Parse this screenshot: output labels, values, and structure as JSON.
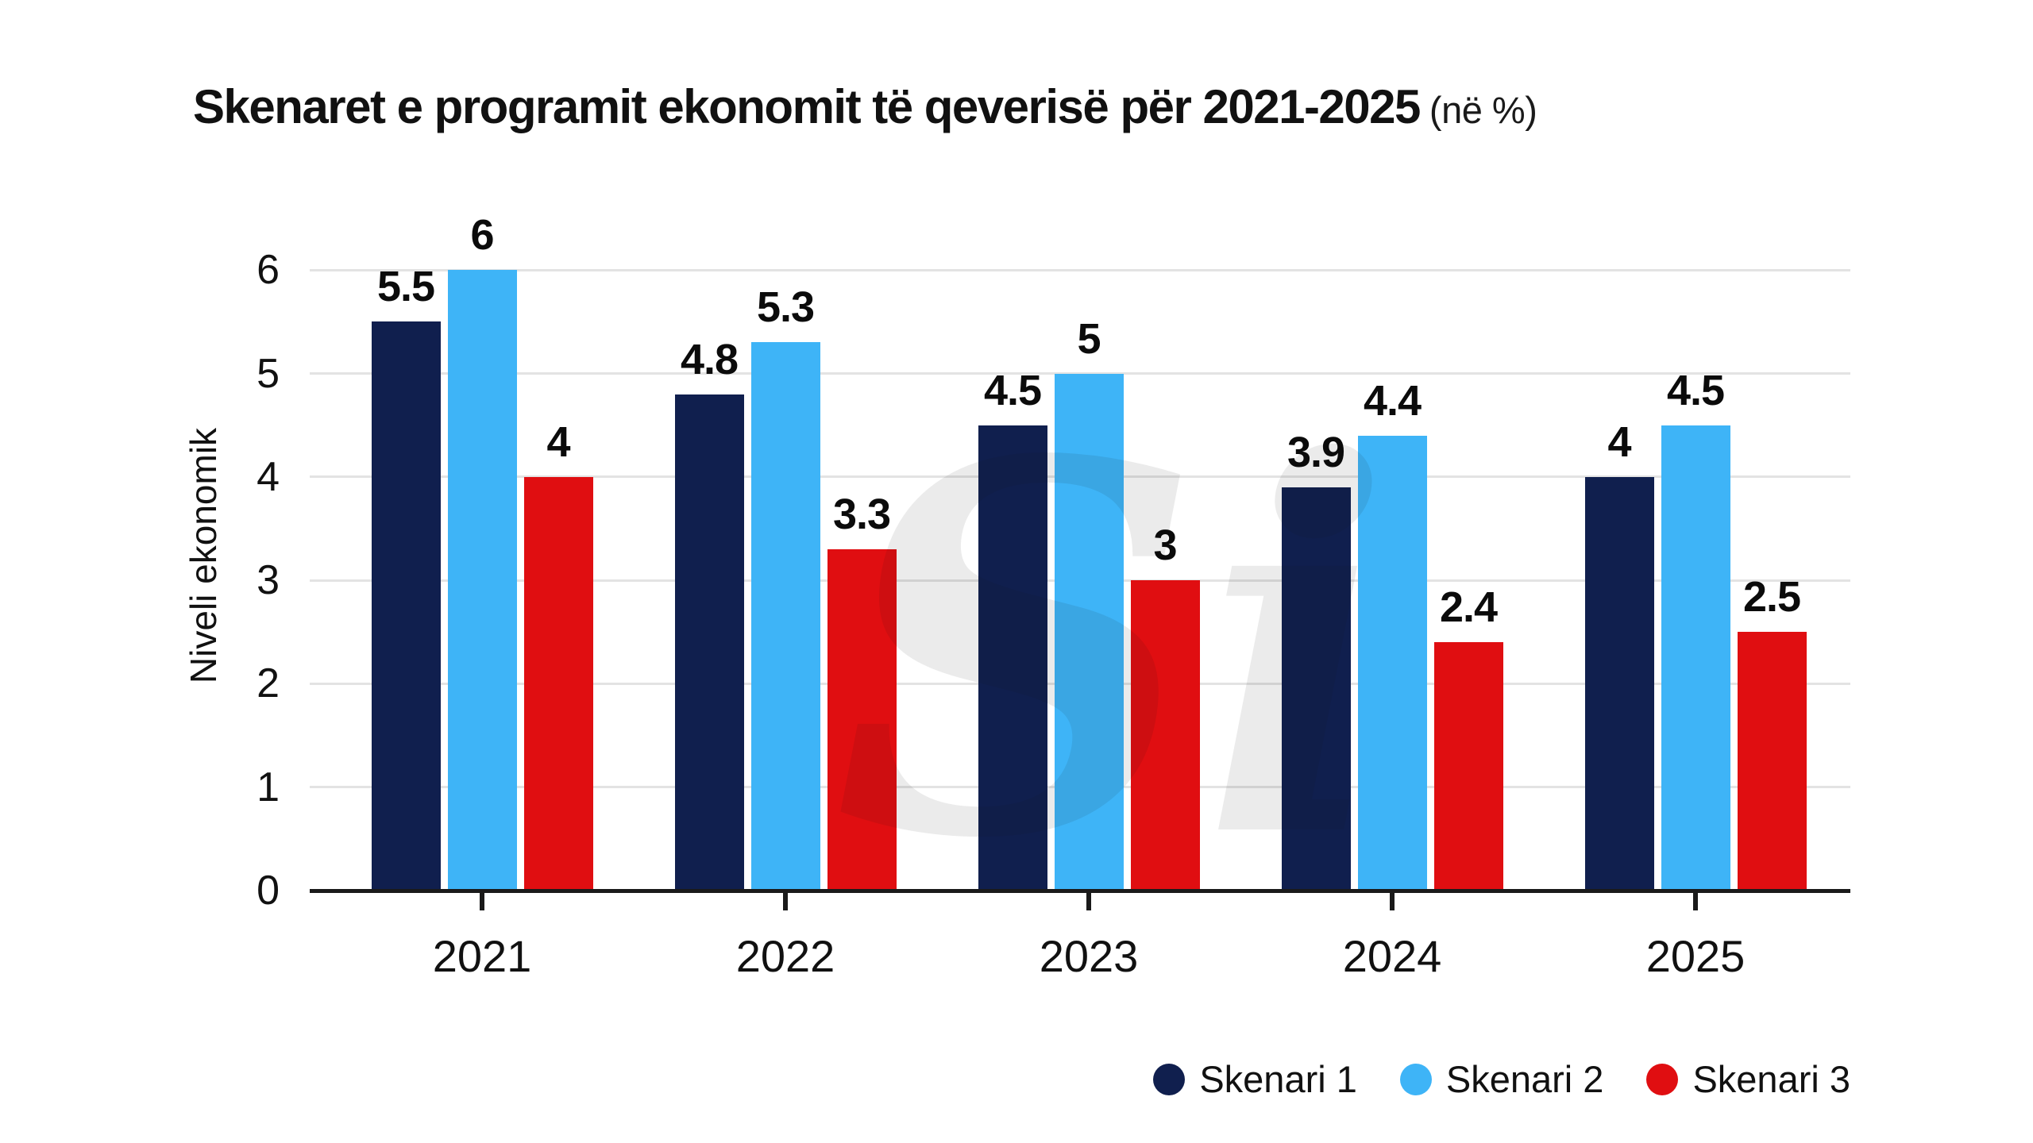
{
  "chart_data": {
    "type": "bar",
    "title": "Skenaret e programit ekonomit të qeverisë për 2021-2025",
    "title_suffix": "(në %)",
    "xlabel": "",
    "ylabel": "Niveli ekonomik",
    "categories": [
      "2021",
      "2022",
      "2023",
      "2024",
      "2025"
    ],
    "series": [
      {
        "name": "Skenari 1",
        "color": "#101f4e",
        "values": [
          5.5,
          4.8,
          4.5,
          3.9,
          4
        ]
      },
      {
        "name": "Skenari 2",
        "color": "#3eb4f7",
        "values": [
          6,
          5.3,
          5,
          4.4,
          4.5
        ]
      },
      {
        "name": "Skenari 3",
        "color": "#e00e11",
        "values": [
          4,
          3.3,
          3,
          2.4,
          2.5
        ]
      }
    ],
    "yticks": [
      0,
      1,
      2,
      3,
      4,
      5,
      6
    ],
    "ylim": [
      0,
      6
    ],
    "grid": true,
    "value_labels_shown": true,
    "legend_position": "bottom-right",
    "colors": {
      "grid": "#e3e3e3",
      "axis": "#1a1a1a",
      "text": "#111111",
      "background": "#ffffff"
    }
  },
  "watermark": {
    "text": "Si"
  }
}
